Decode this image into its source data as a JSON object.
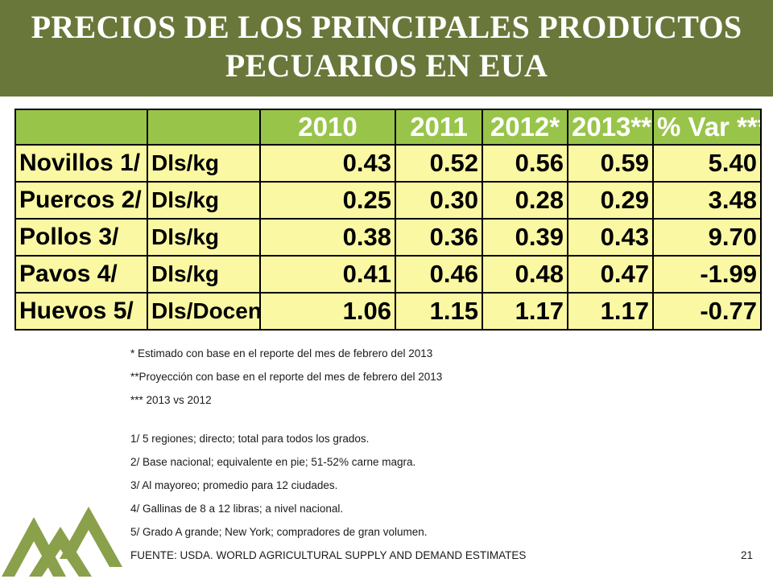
{
  "title": {
    "line1": "PRECIOS DE LOS PRINCIPALES PRODUCTOS",
    "line2": "PECUARIOS EN EUA"
  },
  "table": {
    "headers": [
      "",
      "",
      "2010",
      "2011",
      "2012*",
      "2013**",
      "% Var ***"
    ],
    "rows": [
      {
        "product": "Novillos 1/",
        "unit": "Dls/kg",
        "v2010": "0.43",
        "v2011": "0.52",
        "v2012": "0.56",
        "v2013": "0.59",
        "var": "5.40"
      },
      {
        "product": "Puercos 2/",
        "unit": "Dls/kg",
        "v2010": "0.25",
        "v2011": "0.30",
        "v2012": "0.28",
        "v2013": "0.29",
        "var": "3.48"
      },
      {
        "product": "Pollos 3/",
        "unit": "Dls/kg",
        "v2010": "0.38",
        "v2011": "0.36",
        "v2012": "0.39",
        "v2013": "0.43",
        "var": "9.70"
      },
      {
        "product": "Pavos 4/",
        "unit": "Dls/kg",
        "v2010": "0.41",
        "v2011": "0.46",
        "v2012": "0.48",
        "v2013": "0.47",
        "var": "-1.99"
      },
      {
        "product": "Huevos 5/",
        "unit": "Dls/Docena",
        "v2010": "1.06",
        "v2011": "1.15",
        "v2012": "1.17",
        "v2013": "1.17",
        "var": "-0.77"
      }
    ]
  },
  "notes": [
    "* Estimado con base en el reporte del mes de febrero del 2013",
    "**Proyección con base en el reporte del mes de febrero del 2013",
    "*** 2013 vs 2012",
    "1/ 5 regiones; directo; total para todos los grados.",
    "2/ Base nacional; equivalente en pie; 51-52% carne magra.",
    "3/ Al mayoreo; promedio para 12 ciudades.",
    "4/ Gallinas de 8 a 12 libras; a nivel nacional.",
    "5/ Grado A grande; New York; compradores de gran volumen."
  ],
  "source": "FUENTE: USDA. WORLD AGRICULTURAL SUPPLY AND DEMAND ESTIMATES",
  "page_number": "21",
  "colors": {
    "banner": "#69773a",
    "header_fill": "#99c44a",
    "cell_fill": "#fbf8a3",
    "logo": "#8aa04a"
  },
  "logo_icon": "mountains-logo-icon"
}
